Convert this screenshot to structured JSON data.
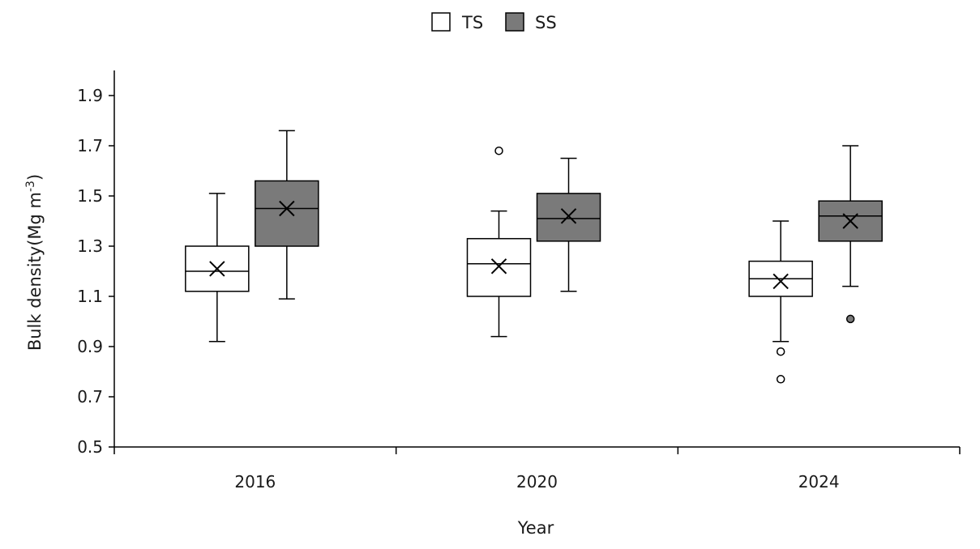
{
  "chart_data": {
    "type": "boxplot",
    "title": "",
    "xlabel": "Year",
    "ylabel": {
      "prefix": "Bulk density(Mg m",
      "sup": "-3",
      "suffix": ")"
    },
    "ylim": [
      0.5,
      2.0
    ],
    "yticks": [
      0.5,
      0.7,
      0.9,
      1.1,
      1.3,
      1.5,
      1.7,
      1.9
    ],
    "ytick_labels": [
      "0.5",
      "0.7",
      "0.9",
      "1.1",
      "1.3",
      "1.5",
      "1.7",
      "1.9"
    ],
    "categories": [
      "2016",
      "2020",
      "2024"
    ],
    "legend": {
      "position": "top-center"
    },
    "colors": {
      "TS": "#ffffff",
      "SS": "#7a7a7a",
      "stroke": "#000000"
    },
    "series": [
      {
        "name": "TS",
        "fill": "#ffffff",
        "boxes": [
          {
            "category": "2016",
            "whisker_low": 0.92,
            "q1": 1.12,
            "median": 1.2,
            "q3": 1.3,
            "whisker_high": 1.51,
            "mean": 1.21,
            "outliers": []
          },
          {
            "category": "2020",
            "whisker_low": 0.94,
            "q1": 1.1,
            "median": 1.23,
            "q3": 1.33,
            "whisker_high": 1.44,
            "mean": 1.22,
            "outliers": [
              1.68
            ]
          },
          {
            "category": "2024",
            "whisker_low": 0.92,
            "q1": 1.1,
            "median": 1.17,
            "q3": 1.24,
            "whisker_high": 1.4,
            "mean": 1.16,
            "outliers": [
              0.88,
              0.77
            ]
          }
        ]
      },
      {
        "name": "SS",
        "fill": "#7a7a7a",
        "boxes": [
          {
            "category": "2016",
            "whisker_low": 1.09,
            "q1": 1.3,
            "median": 1.45,
            "q3": 1.56,
            "whisker_high": 1.76,
            "mean": 1.45,
            "outliers": []
          },
          {
            "category": "2020",
            "whisker_low": 1.12,
            "q1": 1.32,
            "median": 1.41,
            "q3": 1.51,
            "whisker_high": 1.65,
            "mean": 1.42,
            "outliers": []
          },
          {
            "category": "2024",
            "whisker_low": 1.14,
            "q1": 1.32,
            "median": 1.42,
            "q3": 1.48,
            "whisker_high": 1.7,
            "mean": 1.4,
            "outliers": [
              1.01
            ]
          }
        ]
      }
    ]
  }
}
